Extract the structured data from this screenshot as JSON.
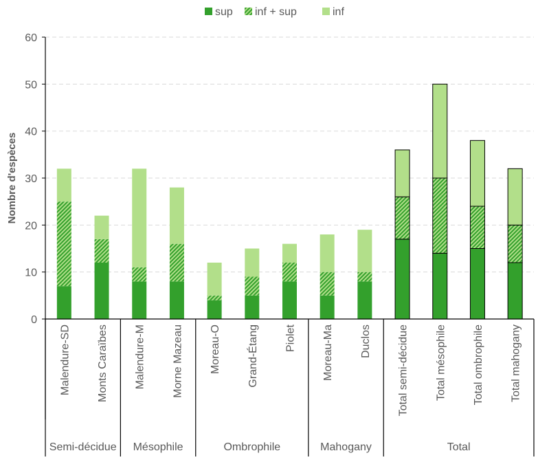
{
  "chart_data": {
    "type": "bar",
    "stacked": true,
    "title": "",
    "xlabel": "",
    "ylabel": "Nombre d'espèces",
    "ylim": [
      0,
      60
    ],
    "yticks": [
      0,
      10,
      20,
      30,
      40,
      50,
      60
    ],
    "grid": "horizontal dashed",
    "legend_position": "top-center",
    "legend": [
      {
        "name": "sup",
        "color": "#33A02C",
        "pattern": "solid"
      },
      {
        "name": "inf + sup",
        "color": "#33A02C",
        "pattern": "hatched"
      },
      {
        "name": "inf",
        "color": "#B2DF8A",
        "pattern": "solid"
      }
    ],
    "groups": [
      {
        "name": "Semi-décidue",
        "categories": [
          "Malendure-SD",
          "Monts Caraïbes"
        ]
      },
      {
        "name": "Mésophile",
        "categories": [
          "Malendure-M",
          "Morne Mazeau"
        ]
      },
      {
        "name": "Ombrophile",
        "categories": [
          "Moreau-O",
          "Grand-Étang",
          "Piolet"
        ]
      },
      {
        "name": "Mahogany",
        "categories": [
          "Moreau-Ma",
          "Duclos"
        ]
      },
      {
        "name": "Total",
        "categories": [
          "Total semi-décidue",
          "Total mésophile",
          "Total ombrophile",
          "Total mahogany"
        ]
      }
    ],
    "categories": [
      "Malendure-SD",
      "Monts Caraïbes",
      "Malendure-M",
      "Morne Mazeau",
      "Moreau-O",
      "Grand-Étang",
      "Piolet",
      "Moreau-Ma",
      "Duclos",
      "Total semi-décidue",
      "Total mésophile",
      "Total ombrophile",
      "Total mahogany"
    ],
    "outlined": [
      false,
      false,
      false,
      false,
      false,
      false,
      false,
      false,
      false,
      true,
      true,
      true,
      true
    ],
    "series": [
      {
        "name": "sup",
        "values": [
          7,
          12,
          8,
          8,
          4,
          5,
          8,
          5,
          8,
          17,
          14,
          15,
          12
        ]
      },
      {
        "name": "inf + sup",
        "values": [
          18,
          5,
          3,
          8,
          1,
          4,
          4,
          5,
          2,
          9,
          16,
          9,
          8
        ]
      },
      {
        "name": "inf",
        "values": [
          7,
          5,
          21,
          12,
          7,
          6,
          4,
          8,
          9,
          10,
          20,
          14,
          12
        ]
      }
    ]
  }
}
